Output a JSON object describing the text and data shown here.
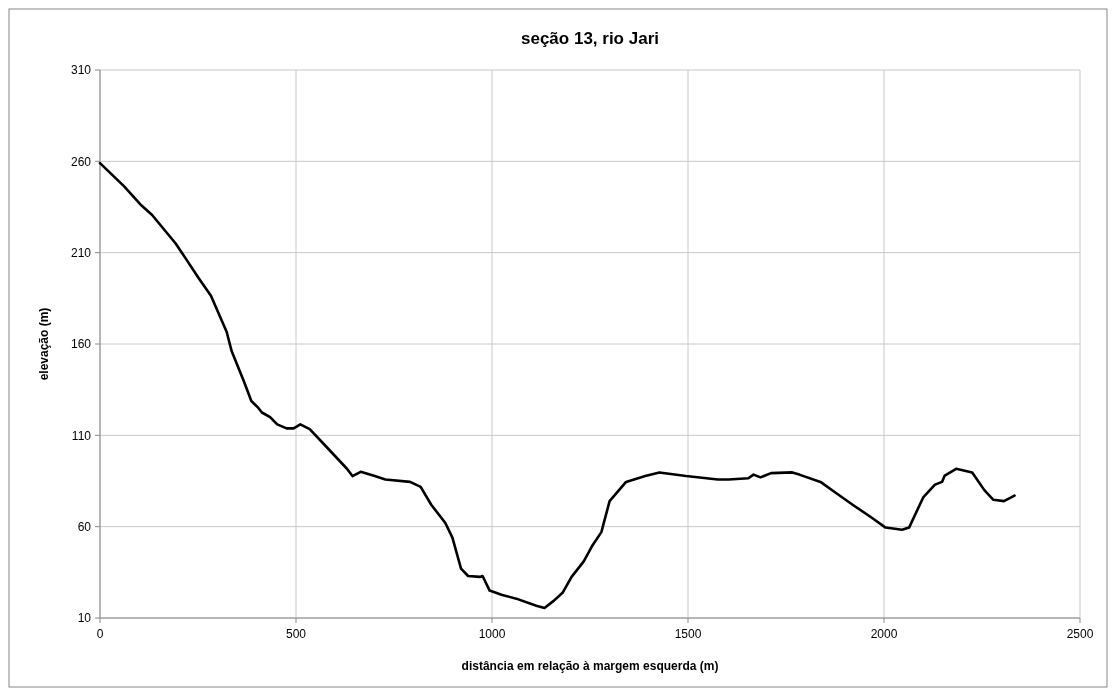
{
  "chart_data": {
    "type": "line",
    "title": "seção 13, rio Jari",
    "xlabel": "distância em relação à margem esquerda (m)",
    "ylabel": "elevação (m)",
    "xlim": [
      0,
      2500
    ],
    "xticks": [
      0,
      500,
      1000,
      1500,
      2000,
      2500
    ],
    "ylim": [
      10,
      310
    ],
    "yticks": [
      10,
      60,
      110,
      160,
      210,
      260,
      310
    ],
    "grid": true,
    "marker": "none",
    "line_style": "solid",
    "series": [
      {
        "color": "#000000",
        "x": [
          0,
          61,
          106,
          133,
          193,
          218,
          251,
          283,
          323,
          336,
          368,
          386,
          404,
          413,
          434,
          452,
          476,
          494,
          511,
          535,
          575,
          630,
          644,
          665,
          701,
          728,
          791,
          818,
          845,
          881,
          899,
          921,
          939,
          969,
          976,
          994,
          1026,
          1062,
          1113,
          1134,
          1158,
          1180,
          1203,
          1234,
          1257,
          1279,
          1300,
          1342,
          1391,
          1427,
          1495,
          1576,
          1604,
          1654,
          1667,
          1685,
          1712,
          1766,
          1784,
          1838,
          1874,
          1920,
          1968,
          2004,
          2046,
          2064,
          2100,
          2130,
          2148,
          2155,
          2184,
          2225,
          2256,
          2279,
          2306,
          2333
        ],
        "values": [
          259,
          246.4,
          235.8,
          230.6,
          215,
          207,
          196.3,
          186.4,
          166.7,
          156,
          139,
          128.8,
          125,
          122.5,
          120,
          116,
          113.8,
          113.8,
          116,
          113.4,
          104.3,
          91.7,
          87.7,
          90,
          87.7,
          85.8,
          84.5,
          81.8,
          72,
          62,
          54,
          37,
          33,
          32.5,
          33,
          25,
          22.6,
          20.6,
          16.7,
          15.5,
          19.5,
          23.8,
          32.5,
          41,
          50,
          57,
          74,
          84.5,
          87.7,
          89.7,
          87.7,
          85.8,
          85.8,
          86.5,
          88.5,
          87,
          89.3,
          89.7,
          88.5,
          84.5,
          79,
          72,
          65,
          59.5,
          58.3,
          59.5,
          76,
          83,
          84.5,
          88,
          91.7,
          89.7,
          80,
          74.7,
          74,
          77
        ]
      }
    ]
  }
}
